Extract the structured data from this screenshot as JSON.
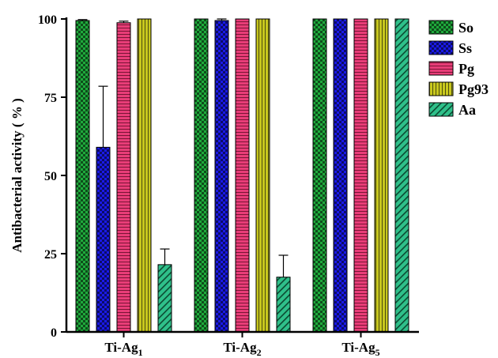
{
  "chart_data": {
    "type": "bar",
    "title": "",
    "ylabel": "Antibacterial activity ( % )",
    "xlabel": "",
    "ylim": [
      0,
      100
    ],
    "yticks": [
      0,
      25,
      50,
      75,
      100
    ],
    "ytick_labels": [
      "0",
      "25",
      "50",
      "75",
      "100"
    ],
    "categories": [
      {
        "base": "Ti-Ag",
        "sub": "1"
      },
      {
        "base": "Ti-Ag",
        "sub": "2"
      },
      {
        "base": "Ti-Ag",
        "sub": "5"
      }
    ],
    "legend_position": "right",
    "grid": false,
    "series": [
      {
        "name": "So",
        "color": "#1faa3c",
        "pattern": "checker",
        "values": [
          99.5,
          100,
          100
        ],
        "errors": [
          0.3,
          0,
          0
        ]
      },
      {
        "name": "Ss",
        "color": "#1a1ae6",
        "pattern": "checker",
        "values": [
          59,
          99.5,
          100
        ],
        "errors": [
          19.5,
          0.6,
          0
        ]
      },
      {
        "name": "Pg",
        "color": "#e83d78",
        "pattern": "horizontal",
        "values": [
          98.8,
          100,
          100
        ],
        "errors": [
          0.5,
          0,
          0
        ]
      },
      {
        "name": "Pg93",
        "color": "#c8c81e",
        "pattern": "vertical",
        "values": [
          100,
          100,
          100
        ],
        "errors": [
          0,
          0,
          0
        ]
      },
      {
        "name": "Aa",
        "color": "#2fc08a",
        "pattern": "diagonal",
        "values": [
          21.5,
          17.5,
          100
        ],
        "errors": [
          5,
          7,
          0
        ]
      }
    ]
  }
}
